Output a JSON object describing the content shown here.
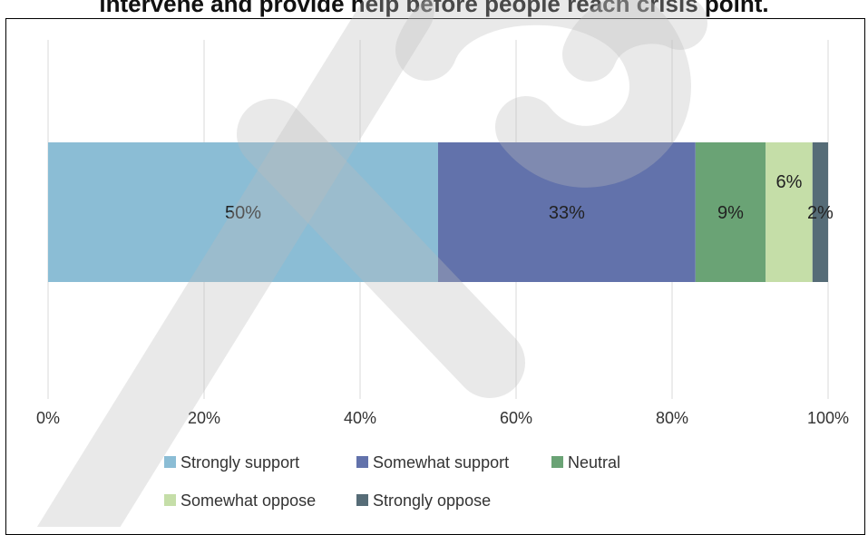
{
  "chart_data": {
    "type": "bar",
    "orientation": "horizontal-stacked",
    "title": "intervene and provide help before people reach crisis point.",
    "xlim": [
      0,
      100
    ],
    "x_ticks": [
      "0%",
      "20%",
      "40%",
      "60%",
      "80%",
      "100%"
    ],
    "grid": true,
    "legend_position": "bottom",
    "series": [
      {
        "name": "Strongly support",
        "value": 50,
        "label": "50%",
        "color": "#8bbdd5"
      },
      {
        "name": "Somewhat support",
        "value": 33,
        "label": "33%",
        "color": "#6272ab"
      },
      {
        "name": "Neutral",
        "value": 9,
        "label": "9%",
        "color": "#6aa375"
      },
      {
        "name": "Somewhat oppose",
        "value": 6,
        "label": "6%",
        "color": "#c5dea8"
      },
      {
        "name": "Strongly oppose",
        "value": 2,
        "label": "2%",
        "color": "#566c77"
      }
    ]
  }
}
